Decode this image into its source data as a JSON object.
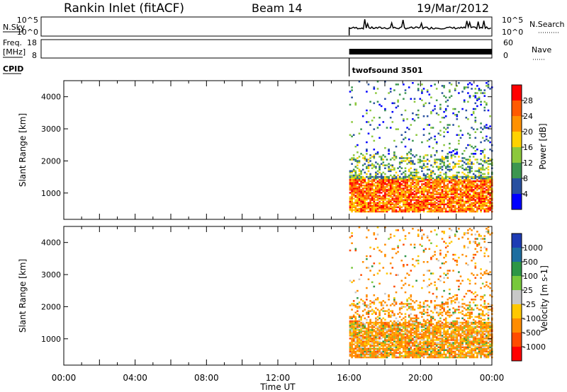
{
  "header": {
    "station": "Rankin Inlet (fitACF)",
    "beam": "Beam 14",
    "date": "19/Mar/2012"
  },
  "top_panels": {
    "nsky_label": "N.Sky",
    "nsearch_label": "N.Search",
    "nsky_ticks": [
      "10^5",
      "10^0"
    ],
    "nsearch_ticks": [
      "10^5",
      "10^0"
    ],
    "freq_label_1": "Freq.",
    "freq_label_2": "[MHz]",
    "freq_ticks": [
      "18",
      "8"
    ],
    "nave_label": "Nave",
    "nave_ticks": [
      "60",
      "0"
    ],
    "cpid_label": "CPID",
    "cpid_value": "twofsound 3501",
    "data_start_hour": 16
  },
  "colorbars": {
    "power": {
      "label": "Power [dB]",
      "ticks": [
        "28",
        "24",
        "20",
        "16",
        "12",
        "8",
        "4"
      ],
      "colors": [
        "#ff0000",
        "#ff5a00",
        "#ff9100",
        "#ffd200",
        "#8cc83c",
        "#3c9650",
        "#2850a0",
        "#0000ff"
      ]
    },
    "velocity": {
      "label": "Velocity [m s-1]",
      "ticks": [
        "1000",
        "500",
        "100",
        "25",
        "-25",
        "-100",
        "-500",
        "-1000"
      ],
      "colors": [
        "#1e3cb4",
        "#1e6ea0",
        "#2d9646",
        "#78c83c",
        "#c8c8c8",
        "#ffc800",
        "#ff8c00",
        "#ff4b00",
        "#ff0000"
      ]
    }
  },
  "chart_data": [
    {
      "type": "heatmap",
      "name": "power",
      "ylabel": "Slant Range [km]",
      "ylim": [
        180,
        4500
      ],
      "y_ticks": [
        1000,
        2000,
        3000,
        4000
      ],
      "xlim": [
        0,
        24
      ],
      "data_start_hour": 16,
      "colorbar_label": "Power [dB]"
    },
    {
      "type": "heatmap",
      "name": "velocity",
      "ylabel": "Slant Range [km]",
      "ylim": [
        180,
        4500
      ],
      "y_ticks": [
        1000,
        2000,
        3000,
        4000
      ],
      "xlim": [
        0,
        24
      ],
      "data_start_hour": 16,
      "colorbar_label": "Velocity [m s-1]",
      "xlabel": "Time UT",
      "x_ticks": [
        "00:00",
        "04:00",
        "08:00",
        "12:00",
        "16:00",
        "20:00",
        "00:00"
      ]
    }
  ]
}
